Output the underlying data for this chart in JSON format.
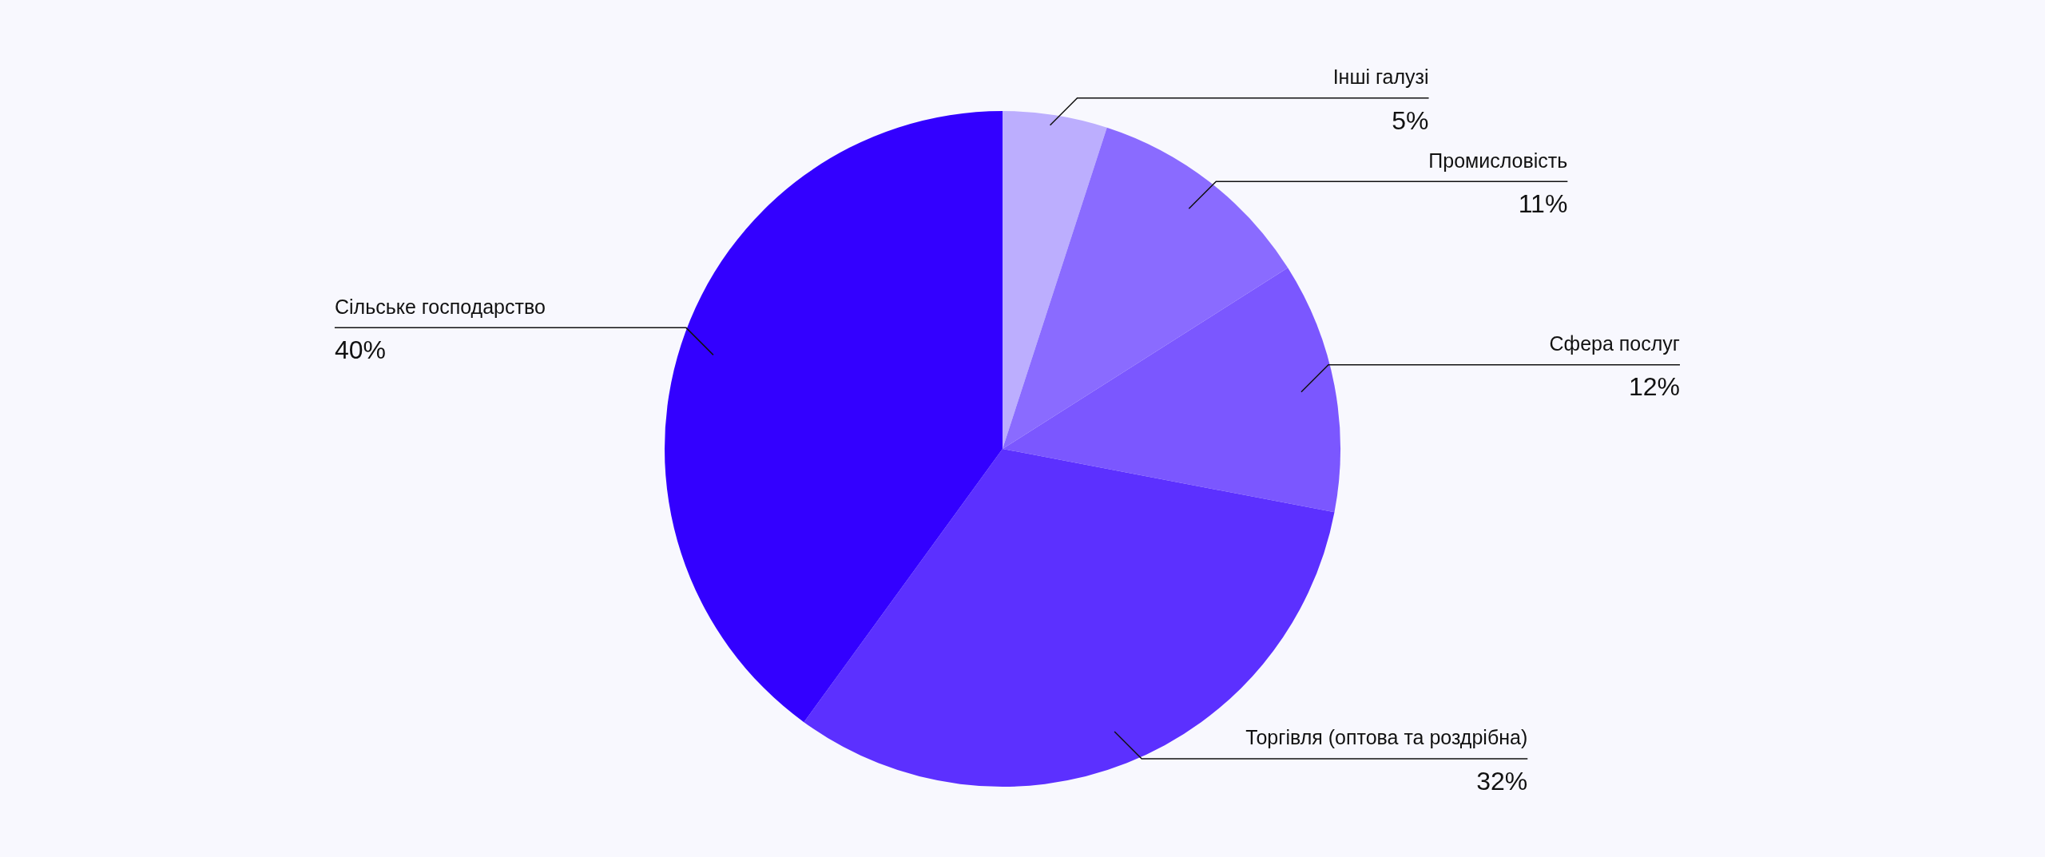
{
  "chart_data": {
    "type": "pie",
    "categories": [
      "Інші галузі",
      "Промисловість",
      "Сфера послуг",
      "Торгівля (оптова та роздрібна)",
      "Сільське господарство"
    ],
    "values": [
      5,
      11,
      12,
      32,
      40
    ],
    "value_labels": [
      "5%",
      "11%",
      "12%",
      "32%",
      "40%"
    ],
    "colors": [
      "#bcaefe",
      "#8a6bff",
      "#7b57ff",
      "#5c30ff",
      "#3300ff"
    ],
    "legend": false
  }
}
